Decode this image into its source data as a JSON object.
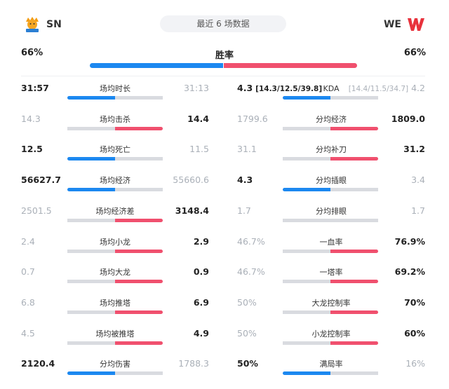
{
  "header": {
    "left_team": "SN",
    "right_team": "WE",
    "recent_label": "最近 6 场数据"
  },
  "winrate": {
    "title": "胜率",
    "left": "66%",
    "right": "66%"
  },
  "left_stats": [
    {
      "label": "场均时长",
      "left": "31:57",
      "right": "31:13",
      "left_strong": true,
      "blue_frac": 0.5,
      "red_frac": 0
    },
    {
      "label": "场均击杀",
      "left": "14.3",
      "right": "14.4",
      "left_strong": false,
      "blue_frac": 0,
      "red_frac": 0.5
    },
    {
      "label": "场均死亡",
      "left": "12.5",
      "right": "11.5",
      "left_strong": true,
      "blue_frac": 0.5,
      "red_frac": 0
    },
    {
      "label": "场均经济",
      "left": "56627.7",
      "right": "55660.6",
      "left_strong": true,
      "blue_frac": 0.5,
      "red_frac": 0
    },
    {
      "label": "场均经济差",
      "left": "2501.5",
      "right": "3148.4",
      "left_strong": false,
      "blue_frac": 0,
      "red_frac": 0.5
    },
    {
      "label": "场均小龙",
      "left": "2.4",
      "right": "2.9",
      "left_strong": false,
      "blue_frac": 0,
      "red_frac": 0.5
    },
    {
      "label": "场均大龙",
      "left": "0.7",
      "right": "0.9",
      "left_strong": false,
      "blue_frac": 0,
      "red_frac": 0.5
    },
    {
      "label": "场均推塔",
      "left": "6.8",
      "right": "6.9",
      "left_strong": false,
      "blue_frac": 0,
      "red_frac": 0.5
    },
    {
      "label": "场均被推塔",
      "left": "4.5",
      "right": "4.9",
      "left_strong": false,
      "blue_frac": 0,
      "red_frac": 0.5
    },
    {
      "label": "分均伤害",
      "left": "2120.4",
      "right": "1788.3",
      "left_strong": true,
      "blue_frac": 0.5,
      "red_frac": 0
    }
  ],
  "right_stats": [
    {
      "label": "KDA",
      "left": "4.3",
      "left_detail": "[14.3/12.5/39.8]",
      "right": "4.2",
      "right_detail": "[14.4/11.5/34.7]",
      "left_strong": true,
      "blue_frac": 0.5,
      "red_frac": 0
    },
    {
      "label": "分均经济",
      "left": "1799.6",
      "right": "1809.0",
      "left_strong": false,
      "blue_frac": 0,
      "red_frac": 0.5
    },
    {
      "label": "分均补刀",
      "left": "31.1",
      "right": "31.2",
      "left_strong": false,
      "blue_frac": 0,
      "red_frac": 0.5
    },
    {
      "label": "分均插眼",
      "left": "4.3",
      "right": "3.4",
      "left_strong": true,
      "blue_frac": 0.5,
      "red_frac": 0
    },
    {
      "label": "分均排眼",
      "left": "1.7",
      "right": "1.7",
      "left_strong": false,
      "blue_frac": 0,
      "red_frac": 0
    },
    {
      "label": "一血率",
      "left": "46.7%",
      "right": "76.9%",
      "left_strong": false,
      "blue_frac": 0,
      "red_frac": 0.5
    },
    {
      "label": "一塔率",
      "left": "46.7%",
      "right": "69.2%",
      "left_strong": false,
      "blue_frac": 0,
      "red_frac": 0.5
    },
    {
      "label": "大龙控制率",
      "left": "50%",
      "right": "70%",
      "left_strong": false,
      "blue_frac": 0,
      "red_frac": 0.5
    },
    {
      "label": "小龙控制率",
      "left": "50%",
      "right": "60%",
      "left_strong": false,
      "blue_frac": 0,
      "red_frac": 0.5
    },
    {
      "label": "满局率",
      "left": "50%",
      "right": "16%",
      "left_strong": true,
      "blue_frac": 0.5,
      "red_frac": 0
    }
  ],
  "colors": {
    "blue": "#1c88f0",
    "red": "#f0506e",
    "gray": "#d9dbe0"
  },
  "icons": {
    "left_logo": "suning-lion-logo",
    "right_logo": "we-logo"
  }
}
